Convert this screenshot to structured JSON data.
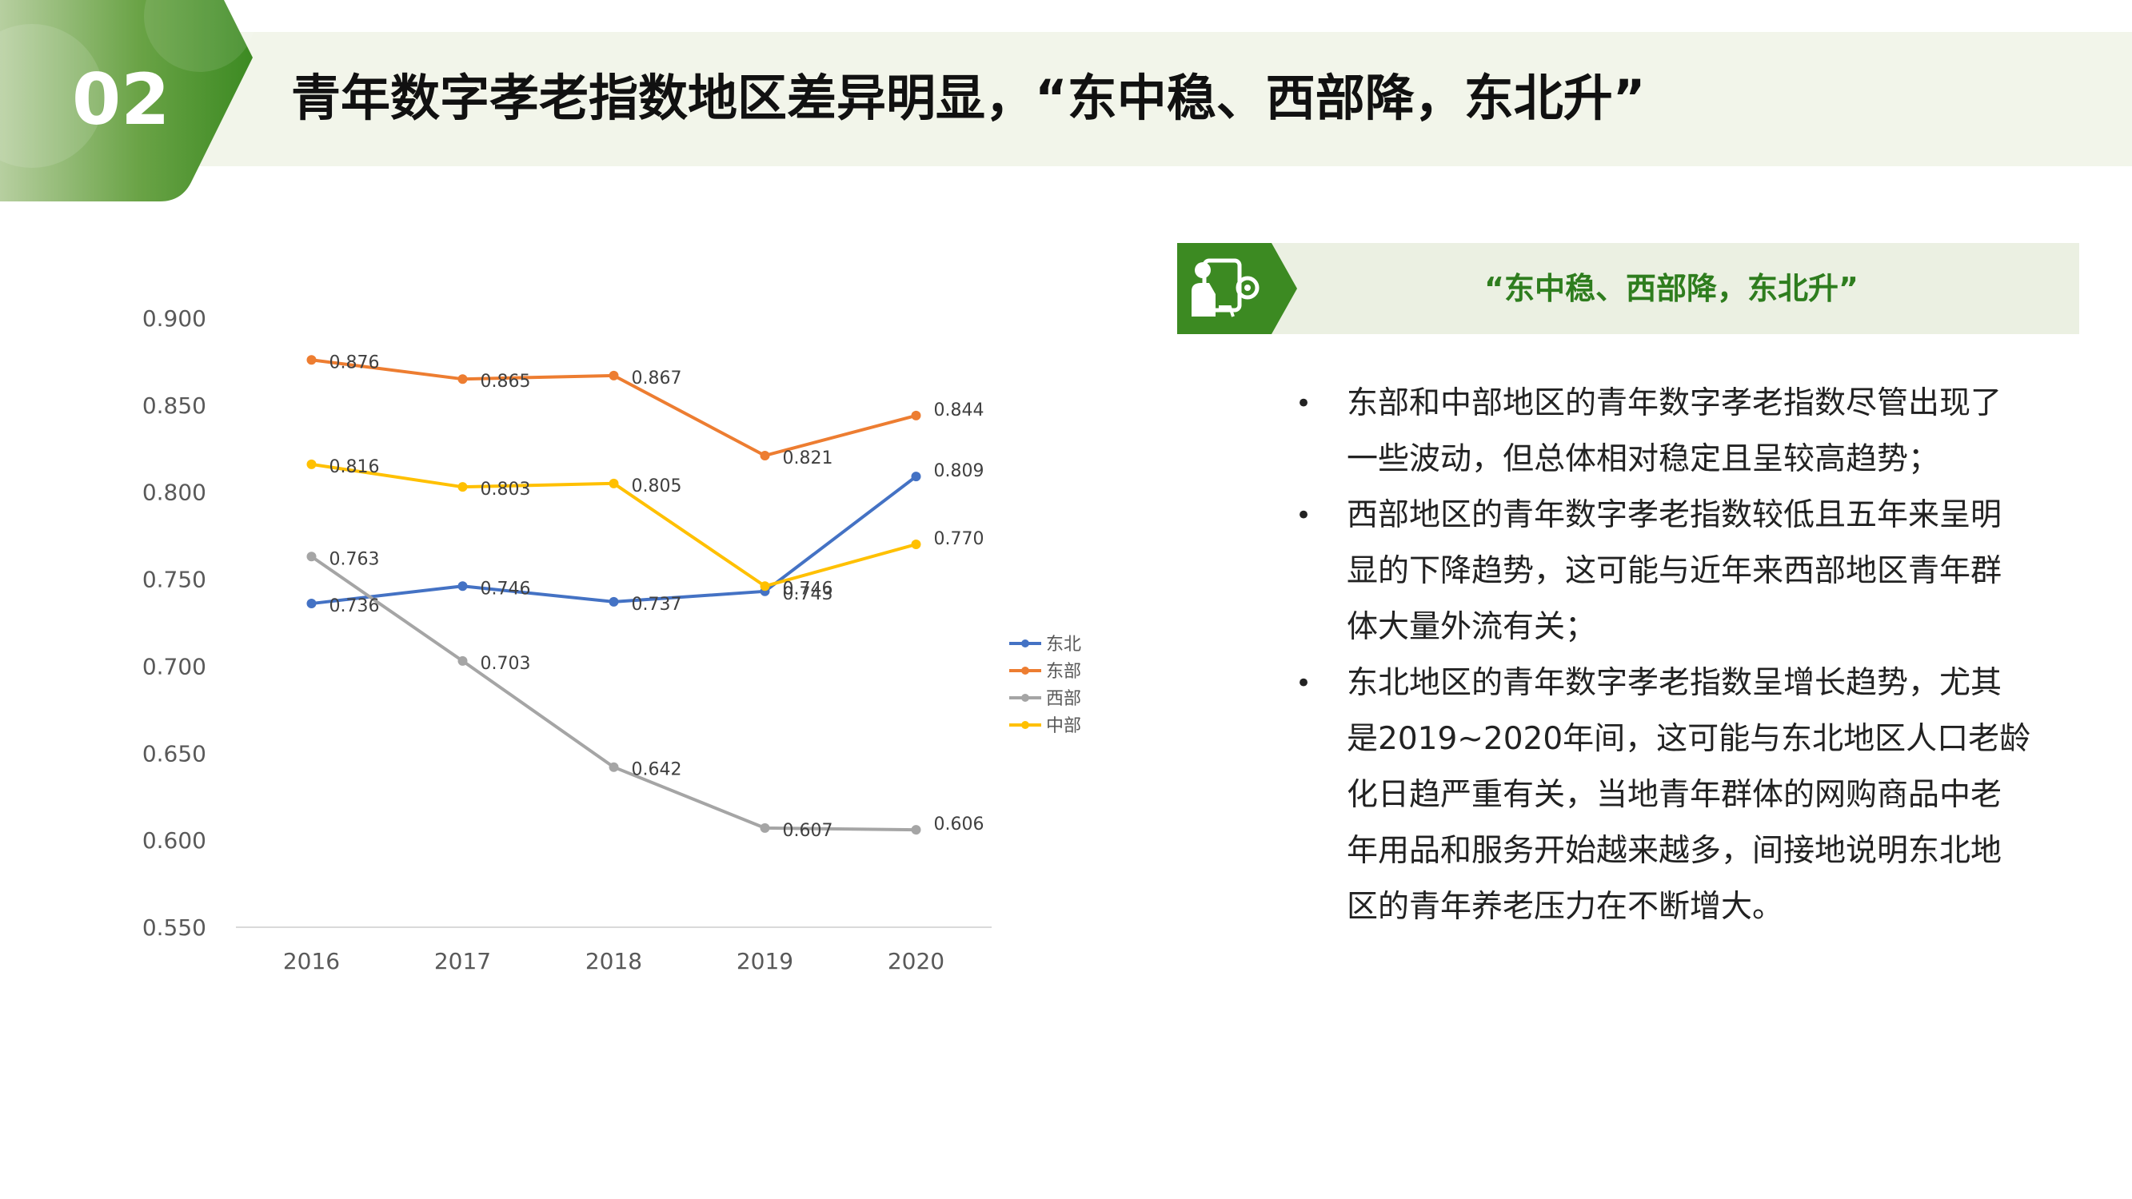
{
  "header": {
    "number": "02",
    "title": "青年数字孝老指数地区差异明显，“东中稳、西部降，东北升”"
  },
  "side_panel": {
    "title": "“东中稳、西部降，东北升”",
    "icon": "person-tablet-icon",
    "bullets": [
      "东部和中部地区的青年数字孝老指数尽管出现了一些波动，但总体相对稳定且呈较高趋势；",
      "西部地区的青年数字孝老指数较低且五年来呈明显的下降趋势，这可能与近年来西部地区青年群体大量外流有关；",
      "东北地区的青年数字孝老指数呈增长趋势，尤其是2019~2020年间，这可能与东北地区人口老龄化日趋严重有关，当地青年群体的网购商品中老年用品和服务开始越来越多，间接地说明东北地区的青年养老压力在不断增大。"
    ]
  },
  "colors": {
    "brand_green": "#3c8a22",
    "title_green": "#2e7d1e",
    "header_band": "#f2f5ea"
  },
  "chart_data": {
    "type": "line",
    "x": [
      "2016",
      "2017",
      "2018",
      "2019",
      "2020"
    ],
    "ylim": [
      0.55,
      0.9
    ],
    "yticks": [
      "0.550",
      "0.600",
      "0.650",
      "0.700",
      "0.750",
      "0.800",
      "0.850",
      "0.900"
    ],
    "grid": false,
    "legend_position": "right",
    "series": [
      {
        "name": "东北",
        "color": "#4472c4",
        "values": [
          0.736,
          0.746,
          0.737,
          0.743,
          0.809
        ],
        "labels": [
          "0.736",
          "0.746",
          "0.737",
          "0.743",
          "0.809"
        ]
      },
      {
        "name": "东部",
        "color": "#ed7d31",
        "values": [
          0.876,
          0.865,
          0.867,
          0.821,
          0.844
        ],
        "labels": [
          "0.876",
          "0.865",
          "0.867",
          "0.821",
          "0.844"
        ]
      },
      {
        "name": "西部",
        "color": "#a5a5a5",
        "values": [
          0.763,
          0.703,
          0.642,
          0.607,
          0.606
        ],
        "labels": [
          "0.763",
          "0.703",
          "0.642",
          "0.607",
          "0.606"
        ]
      },
      {
        "name": "中部",
        "color": "#ffc000",
        "values": [
          0.816,
          0.803,
          0.805,
          0.746,
          0.77
        ],
        "labels": [
          "0.816",
          "0.803",
          "0.805",
          "0.746",
          "0.770"
        ]
      }
    ]
  }
}
